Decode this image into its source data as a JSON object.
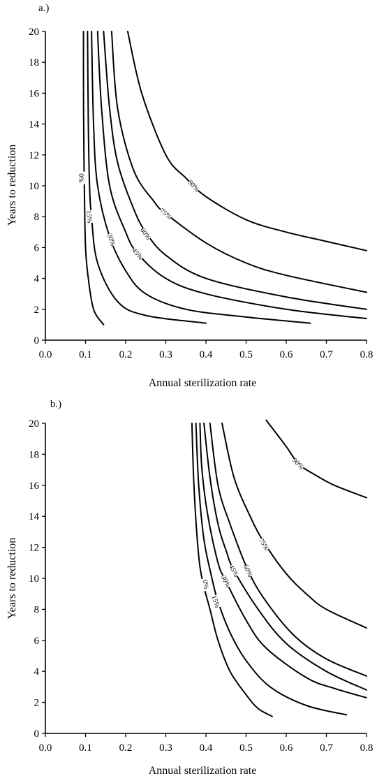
{
  "chart_data": [
    {
      "panel_label": "a.)",
      "type": "line",
      "xlabel": "Annual sterilization rate",
      "ylabel": "Years to reduction",
      "xlim": [
        0.0,
        0.8
      ],
      "ylim": [
        0,
        20
      ],
      "xticks": [
        "0.0",
        "0.1",
        "0.2",
        "0.3",
        "0.4",
        "0.5",
        "0.6",
        "0.7",
        "0.8"
      ],
      "yticks": [
        "0",
        "2",
        "4",
        "6",
        "8",
        "10",
        "12",
        "14",
        "16",
        "18",
        "20"
      ],
      "series": [
        {
          "name": "0%",
          "label_at": [
            0.09,
            10.5
          ],
          "points": [
            [
              0.095,
              20
            ],
            [
              0.095,
              16
            ],
            [
              0.096,
              12
            ],
            [
              0.097,
              10
            ],
            [
              0.1,
              6
            ],
            [
              0.107,
              4
            ],
            [
              0.12,
              2
            ],
            [
              0.145,
              1
            ]
          ]
        },
        {
          "name": "15%",
          "label_at": [
            0.11,
            8.0
          ],
          "points": [
            [
              0.105,
              20
            ],
            [
              0.107,
              14
            ],
            [
              0.11,
              10
            ],
            [
              0.115,
              8
            ],
            [
              0.13,
              5
            ],
            [
              0.18,
              2.5
            ],
            [
              0.25,
              1.6
            ],
            [
              0.4,
              1.1
            ]
          ]
        },
        {
          "name": "30%",
          "label_at": [
            0.165,
            6.5
          ],
          "points": [
            [
              0.115,
              20
            ],
            [
              0.12,
              14
            ],
            [
              0.13,
              10
            ],
            [
              0.16,
              6.7
            ],
            [
              0.2,
              4.5
            ],
            [
              0.25,
              3
            ],
            [
              0.35,
              2
            ],
            [
              0.5,
              1.5
            ],
            [
              0.66,
              1.1
            ]
          ]
        },
        {
          "name": "45%",
          "label_at": [
            0.23,
            5.6
          ],
          "points": [
            [
              0.13,
              20
            ],
            [
              0.14,
              15
            ],
            [
              0.16,
              10
            ],
            [
              0.2,
              7
            ],
            [
              0.23,
              5.6
            ],
            [
              0.3,
              4
            ],
            [
              0.4,
              3
            ],
            [
              0.6,
              2
            ],
            [
              0.8,
              1.4
            ]
          ]
        },
        {
          "name": "60%",
          "label_at": [
            0.25,
            6.9
          ],
          "points": [
            [
              0.145,
              20
            ],
            [
              0.16,
              15
            ],
            [
              0.18,
              11.5
            ],
            [
              0.22,
              8.5
            ],
            [
              0.25,
              7
            ],
            [
              0.3,
              5.5
            ],
            [
              0.4,
              4
            ],
            [
              0.6,
              2.8
            ],
            [
              0.8,
              2
            ]
          ]
        },
        {
          "name": "75%",
          "label_at": [
            0.3,
            8.2
          ],
          "points": [
            [
              0.165,
              20
            ],
            [
              0.18,
              15
            ],
            [
              0.22,
              11
            ],
            [
              0.27,
              9
            ],
            [
              0.3,
              8.2
            ],
            [
              0.4,
              6.3
            ],
            [
              0.5,
              5
            ],
            [
              0.6,
              4.2
            ],
            [
              0.8,
              3.1
            ]
          ]
        },
        {
          "name": "90%",
          "label_at": [
            0.37,
            10.0
          ],
          "points": [
            [
              0.205,
              20
            ],
            [
              0.24,
              16
            ],
            [
              0.3,
              12
            ],
            [
              0.35,
              10.5
            ],
            [
              0.4,
              9.3
            ],
            [
              0.5,
              7.8
            ],
            [
              0.6,
              7
            ],
            [
              0.7,
              6.4
            ],
            [
              0.8,
              5.8
            ]
          ]
        }
      ]
    },
    {
      "panel_label": "b.)",
      "type": "line",
      "xlabel": "Annual sterilization rate",
      "ylabel": "Years to reduction",
      "xlim": [
        0.0,
        0.8
      ],
      "ylim": [
        0,
        20
      ],
      "xticks": [
        "0.0",
        "0.1",
        "0.2",
        "0.3",
        "0.4",
        "0.5",
        "0.6",
        "0.7",
        "0.8"
      ],
      "yticks": [
        "0",
        "2",
        "4",
        "6",
        "8",
        "10",
        "12",
        "14",
        "16",
        "18",
        "20"
      ],
      "series": [
        {
          "name": "0%",
          "label_at": [
            0.4,
            9.6
          ],
          "points": [
            [
              0.365,
              20
            ],
            [
              0.37,
              16
            ],
            [
              0.38,
              12
            ],
            [
              0.39,
              10
            ],
            [
              0.41,
              8
            ],
            [
              0.43,
              6
            ],
            [
              0.46,
              4
            ],
            [
              0.5,
              2.5
            ],
            [
              0.53,
              1.6
            ],
            [
              0.565,
              1.1
            ]
          ]
        },
        {
          "name": "15%",
          "label_at": [
            0.425,
            8.5
          ],
          "points": [
            [
              0.375,
              20
            ],
            [
              0.382,
              16
            ],
            [
              0.395,
              12.5
            ],
            [
              0.415,
              10
            ],
            [
              0.43,
              8.5
            ],
            [
              0.46,
              6.5
            ],
            [
              0.5,
              4.7
            ],
            [
              0.56,
              3
            ],
            [
              0.65,
              1.8
            ],
            [
              0.75,
              1.2
            ]
          ]
        },
        {
          "name": "30%",
          "label_at": [
            0.45,
            9.8
          ],
          "points": [
            [
              0.385,
              20
            ],
            [
              0.39,
              17
            ],
            [
              0.405,
              14
            ],
            [
              0.43,
              11
            ],
            [
              0.45,
              9.8
            ],
            [
              0.5,
              7.3
            ],
            [
              0.55,
              5.5
            ],
            [
              0.65,
              3.6
            ],
            [
              0.72,
              2.9
            ],
            [
              0.8,
              2.3
            ]
          ]
        },
        {
          "name": "45%",
          "label_at": [
            0.47,
            10.5
          ],
          "points": [
            [
              0.395,
              20
            ],
            [
              0.41,
              16.5
            ],
            [
              0.43,
              13.5
            ],
            [
              0.45,
              11.8
            ],
            [
              0.47,
              10.5
            ],
            [
              0.53,
              8
            ],
            [
              0.6,
              5.8
            ],
            [
              0.7,
              4
            ],
            [
              0.8,
              2.8
            ]
          ]
        },
        {
          "name": "60%",
          "label_at": [
            0.505,
            10.5
          ],
          "points": [
            [
              0.41,
              20
            ],
            [
              0.43,
              16
            ],
            [
              0.46,
              13.5
            ],
            [
              0.505,
              10.5
            ],
            [
              0.55,
              8.5
            ],
            [
              0.62,
              6.3
            ],
            [
              0.7,
              4.8
            ],
            [
              0.8,
              3.7
            ]
          ]
        },
        {
          "name": "75%",
          "label_at": [
            0.545,
            12.2
          ],
          "points": [
            [
              0.44,
              20
            ],
            [
              0.47,
              16.5
            ],
            [
              0.51,
              14
            ],
            [
              0.545,
              12.3
            ],
            [
              0.6,
              10.3
            ],
            [
              0.65,
              9
            ],
            [
              0.7,
              8
            ],
            [
              0.8,
              6.8
            ]
          ]
        },
        {
          "name": "90%",
          "label_at": [
            0.63,
            17.4
          ],
          "points": [
            [
              0.55,
              20.2
            ],
            [
              0.6,
              18.5
            ],
            [
              0.63,
              17.4
            ],
            [
              0.67,
              16.7
            ],
            [
              0.72,
              16
            ],
            [
              0.8,
              15.2
            ]
          ]
        }
      ]
    }
  ]
}
